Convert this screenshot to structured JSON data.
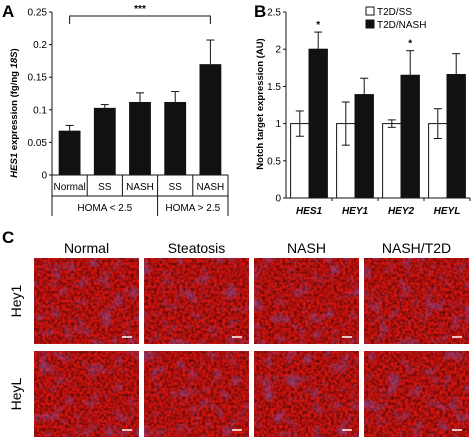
{
  "panel_labels": [
    "A",
    "B",
    "C"
  ],
  "colors": {
    "bar": "#111111",
    "open_bar": "#ffffff",
    "stroke": "#111111"
  },
  "chart_data": [
    {
      "type": "bar",
      "panel": "A",
      "ylabel_parts": [
        "HES1",
        " expression (fg/ng ",
        "18S",
        ")"
      ],
      "ylim": [
        0,
        0.25
      ],
      "yticks": [
        "0",
        "0.05",
        "0.1",
        "0.15",
        "0.2",
        "0.25"
      ],
      "categories": [
        "Normal",
        "SS",
        "NASH",
        "SS",
        "NASH"
      ],
      "values": [
        0.068,
        0.103,
        0.112,
        0.112,
        0.17
      ],
      "errors": [
        0.008,
        0.005,
        0.014,
        0.016,
        0.037
      ],
      "groups": [
        {
          "label": "HOMA < 2.5",
          "members": [
            0,
            1,
            2
          ]
        },
        {
          "label": "HOMA > 2.5",
          "members": [
            3,
            4
          ]
        }
      ],
      "significance": {
        "label": "***",
        "from": 0,
        "to": 4
      }
    },
    {
      "type": "bar",
      "panel": "B",
      "ylabel": "Notch target expression (AU)",
      "ylim": [
        0,
        2.5
      ],
      "yticks": [
        "0",
        "0.5",
        "1",
        "1.5",
        "2",
        "2.5"
      ],
      "categories": [
        "HES1",
        "HEY1",
        "HEY2",
        "HEYL"
      ],
      "series": [
        {
          "name": "T2D/SS",
          "fill": "open",
          "values": [
            1.0,
            1.0,
            1.0,
            1.0
          ],
          "errors": [
            0.17,
            0.29,
            0.05,
            0.2
          ]
        },
        {
          "name": "T2D/NASH",
          "fill": "solid",
          "values": [
            2.0,
            1.39,
            1.65,
            1.66
          ],
          "errors": [
            0.23,
            0.22,
            0.33,
            0.28
          ]
        }
      ],
      "significance_marks": [
        {
          "category": 0,
          "label": "*"
        },
        {
          "category": 2,
          "label": "*"
        }
      ]
    }
  ],
  "micrographs": {
    "columns": [
      "Normal",
      "Steatosis",
      "NASH",
      "NASH/T2D"
    ],
    "rows": [
      "Hey1",
      "HeyL"
    ]
  }
}
